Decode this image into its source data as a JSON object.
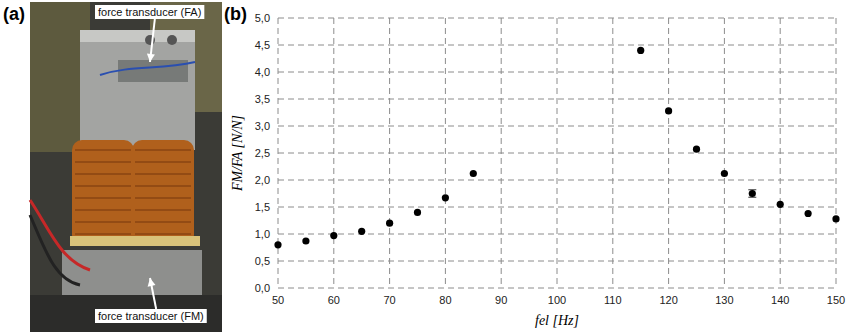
{
  "chart_data": {
    "type": "scatter",
    "x_label": "fel [Hz]",
    "y_label": "FM/FA [N/N]",
    "x": [
      50,
      55,
      60,
      65,
      70,
      75,
      80,
      85,
      115,
      120,
      125,
      130,
      135,
      140,
      145,
      150
    ],
    "values": [
      0.8,
      0.87,
      0.97,
      1.05,
      1.2,
      1.4,
      1.67,
      2.12,
      4.4,
      3.28,
      2.57,
      2.12,
      1.75,
      1.55,
      1.38,
      1.28
    ],
    "errors": [
      null,
      null,
      null,
      null,
      null,
      null,
      null,
      null,
      null,
      null,
      null,
      null,
      0.07,
      null,
      null,
      null
    ],
    "color": "#000000",
    "marker": "circle",
    "xlim": [
      50,
      150
    ],
    "ylim": [
      0,
      5
    ],
    "xticks": [
      50,
      60,
      70,
      80,
      90,
      100,
      110,
      120,
      130,
      140,
      150
    ],
    "yticks": [
      {
        "value": 0,
        "label": "0,0"
      },
      {
        "value": 0.5,
        "label": "0,5"
      },
      {
        "value": 1,
        "label": "1,0"
      },
      {
        "value": 1.5,
        "label": "1,5"
      },
      {
        "value": 2,
        "label": "2,0"
      },
      {
        "value": 2.5,
        "label": "2,5"
      },
      {
        "value": 3,
        "label": "3,0"
      },
      {
        "value": 3.5,
        "label": "3,5"
      },
      {
        "value": 4,
        "label": "4,0"
      },
      {
        "value": 4.5,
        "label": "4,5"
      },
      {
        "value": 5,
        "label": "5,0"
      }
    ],
    "grid": true
  },
  "panel_labels": [
    "(a)",
    "(b)"
  ],
  "photo": {
    "annotations": [
      "force transducer (FA)",
      "force transducer (FM)"
    ]
  }
}
